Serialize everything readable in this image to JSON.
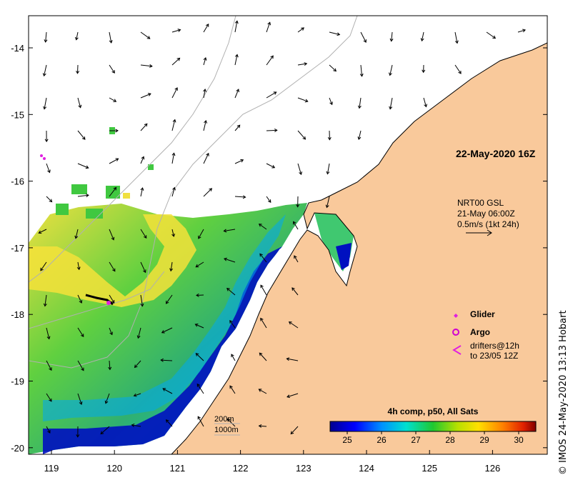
{
  "map": {
    "date_title": "22-May-2020 16Z",
    "current_source": {
      "line1": "NRT00 GSL",
      "line2": "21-May 06:00Z",
      "line3": "0.5m/s (1kt 24h)"
    },
    "legend": {
      "glider": "Glider",
      "argo": "Argo",
      "drifters_line1": "drifters@12h",
      "drifters_line2": "to 23/05 12Z"
    },
    "depth_labels": {
      "contour_200": "200m",
      "contour_1000": "1000m"
    },
    "colorbar": {
      "title": "4h comp, p50, All Sats",
      "ticks": [
        "25",
        "26",
        "27",
        "28",
        "29",
        "30"
      ],
      "range": [
        24.5,
        30.5
      ]
    },
    "axes": {
      "x_ticks": [
        "119",
        "120",
        "121",
        "122",
        "123",
        "124",
        "125",
        "126"
      ],
      "y_ticks": [
        "-14",
        "-15",
        "-16",
        "-17",
        "-18",
        "-19",
        "-20"
      ]
    },
    "credit": "© IMOS 24-May-2020 13:13 Hobart"
  },
  "colors": {
    "land": "#f9c99b",
    "coast": "#000000",
    "sst_cold": "#000090",
    "sst_warm": "#800000",
    "glider": "#e020e0",
    "argo": "#d000d0",
    "contours": "#b0b0b0"
  }
}
